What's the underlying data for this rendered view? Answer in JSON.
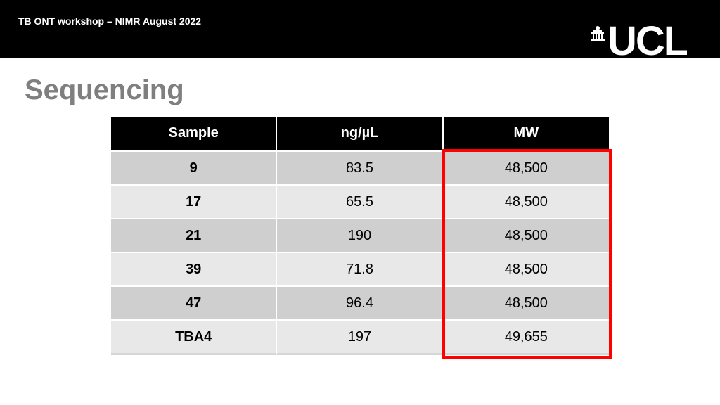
{
  "header": {
    "title": "TB ONT workshop – NIMR August 2022",
    "logo_text": "UCL",
    "logo_icon": "ucl-portico-icon"
  },
  "page_title": "Sequencing",
  "table": {
    "columns": [
      "Sample",
      "ng/µL",
      "MW"
    ],
    "rows": [
      {
        "sample": "9",
        "conc": "83.5",
        "mw": "48,500"
      },
      {
        "sample": "17",
        "conc": "65.5",
        "mw": "48,500"
      },
      {
        "sample": "21",
        "conc": "190",
        "mw": "48,500"
      },
      {
        "sample": "39",
        "conc": "71.8",
        "mw": "48,500"
      },
      {
        "sample": "47",
        "conc": "96.4",
        "mw": "48,500"
      },
      {
        "sample": "TBA4",
        "conc": "197",
        "mw": "49,655"
      }
    ]
  },
  "colors": {
    "header_bg": "#000000",
    "title_gray": "#7f7f7f",
    "highlight": "#ff0000",
    "row_dark": "#cfcfcf",
    "row_light": "#e8e8e8"
  }
}
